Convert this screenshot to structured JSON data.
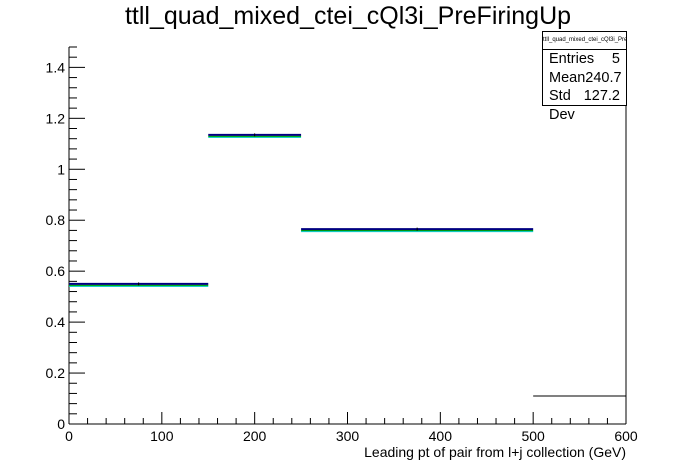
{
  "chart_data": {
    "type": "histogram",
    "title": "ttll_quad_mixed_ctei_cQl3i_PreFiringUp",
    "xlabel": "Leading pt of pair from l+j collection (GeV)",
    "ylabel": "",
    "xlim": [
      0,
      600
    ],
    "ylim": [
      0,
      1.48
    ],
    "x_ticks": [
      0,
      100,
      200,
      300,
      400,
      500,
      600
    ],
    "y_ticks": [
      0,
      0.2,
      0.4,
      0.6,
      0.8,
      1,
      1.2,
      1.4
    ],
    "x_tick_labels": [
      "0",
      "100",
      "200",
      "300",
      "400",
      "500",
      "600"
    ],
    "y_tick_labels": [
      "0",
      "0.2",
      "0.4",
      "0.6",
      "0.8",
      "1",
      "1.2",
      "1.4"
    ],
    "grid": false,
    "bins": [
      {
        "x_low": 0,
        "x_high": 150,
        "value": 0.55
      },
      {
        "x_low": 150,
        "x_high": 250,
        "value": 1.135
      },
      {
        "x_low": 250,
        "x_high": 500,
        "value": 0.765
      },
      {
        "x_low": 500,
        "x_high": 600,
        "value": 0.11
      }
    ],
    "band_colors": {
      "line": "#000080",
      "up": "#00aa00",
      "down": "#00c8c8",
      "overflow": "#000000"
    },
    "stats": {
      "name": "ttll_quad_mixed_ctei_cQl3i_PreFiringUp",
      "entries_label": "Entries",
      "entries": "5",
      "mean_label": "Mean",
      "mean": "240.7",
      "stddev_label": "Std Dev",
      "stddev": "127.2"
    }
  }
}
